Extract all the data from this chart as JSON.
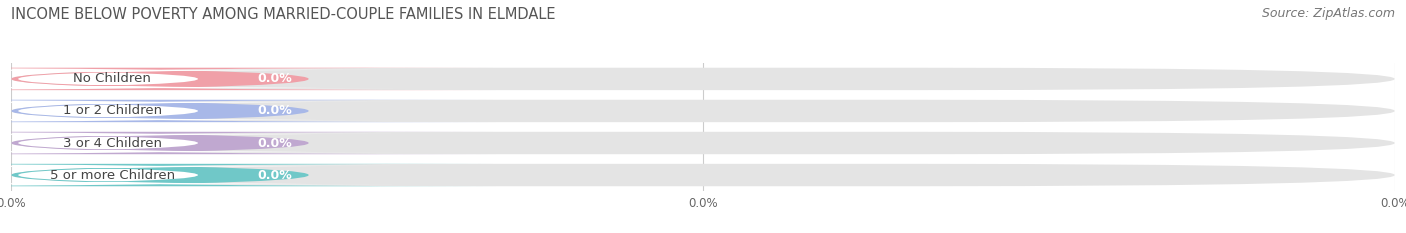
{
  "title": "INCOME BELOW POVERTY AMONG MARRIED-COUPLE FAMILIES IN ELMDALE",
  "source": "Source: ZipAtlas.com",
  "categories": [
    "No Children",
    "1 or 2 Children",
    "3 or 4 Children",
    "5 or more Children"
  ],
  "values": [
    0.0,
    0.0,
    0.0,
    0.0
  ],
  "bar_colors": [
    "#f0a0a8",
    "#a8b8e8",
    "#c0a8d0",
    "#70c8c8"
  ],
  "background_color": "#ffffff",
  "bar_bg_color": "#e4e4e4",
  "title_fontsize": 10.5,
  "source_fontsize": 9,
  "label_fontsize": 9.5,
  "value_fontsize": 9,
  "colored_bar_width": 0.215,
  "bar_height": 0.7,
  "n_xticks": 3,
  "xtick_labels": [
    "0.0%",
    "0.0%",
    "0.0%"
  ],
  "xtick_positions": [
    0.0,
    0.5,
    1.0
  ]
}
